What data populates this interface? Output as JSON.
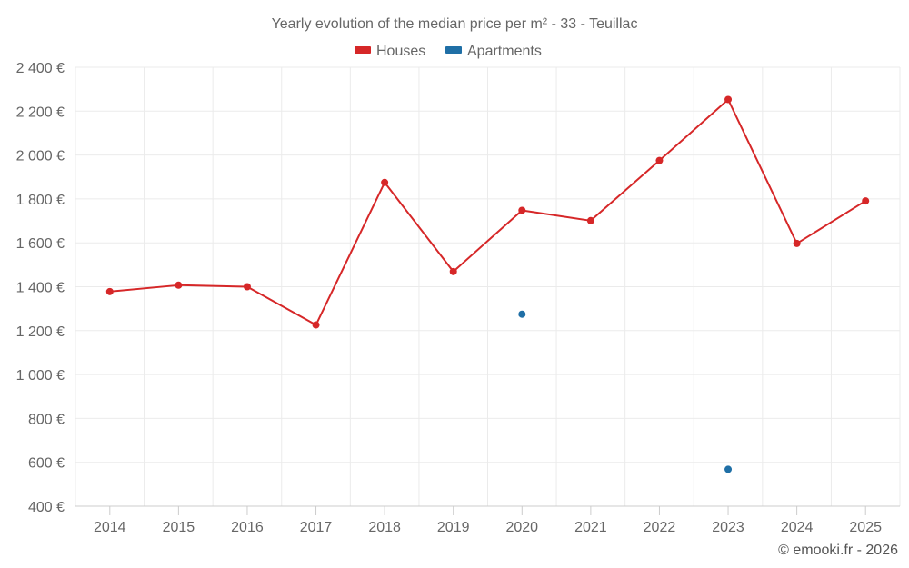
{
  "chart_data": {
    "type": "line",
    "title": "Yearly evolution of the median price per m² - 33 - Teuillac",
    "categories": [
      "2014",
      "2015",
      "2016",
      "2017",
      "2018",
      "2019",
      "2020",
      "2021",
      "2022",
      "2023",
      "2024",
      "2025"
    ],
    "series": [
      {
        "name": "Houses",
        "color": "#d62728",
        "values": [
          1378,
          1407,
          1400,
          1226,
          1875,
          1469,
          1748,
          1701,
          1975,
          2253,
          1597,
          1791
        ]
      },
      {
        "name": "Apartments",
        "color": "#1f6fa6",
        "values": [
          null,
          null,
          null,
          null,
          null,
          null,
          1275,
          null,
          null,
          568,
          null,
          null
        ]
      }
    ],
    "y_ticks": [
      400,
      600,
      800,
      1000,
      1200,
      1400,
      1600,
      1800,
      2000,
      2200,
      2400
    ],
    "y_tick_labels": [
      "400 €",
      "600 €",
      "800 €",
      "1 000 €",
      "1 200 €",
      "1 400 €",
      "1 600 €",
      "1 800 €",
      "2 000 €",
      "2 200 €",
      "2 400 €"
    ],
    "ylim": [
      400,
      2400
    ],
    "legend_position": "top-center",
    "xlabel": "",
    "ylabel": ""
  },
  "credit": "© emooki.fr - 2026"
}
